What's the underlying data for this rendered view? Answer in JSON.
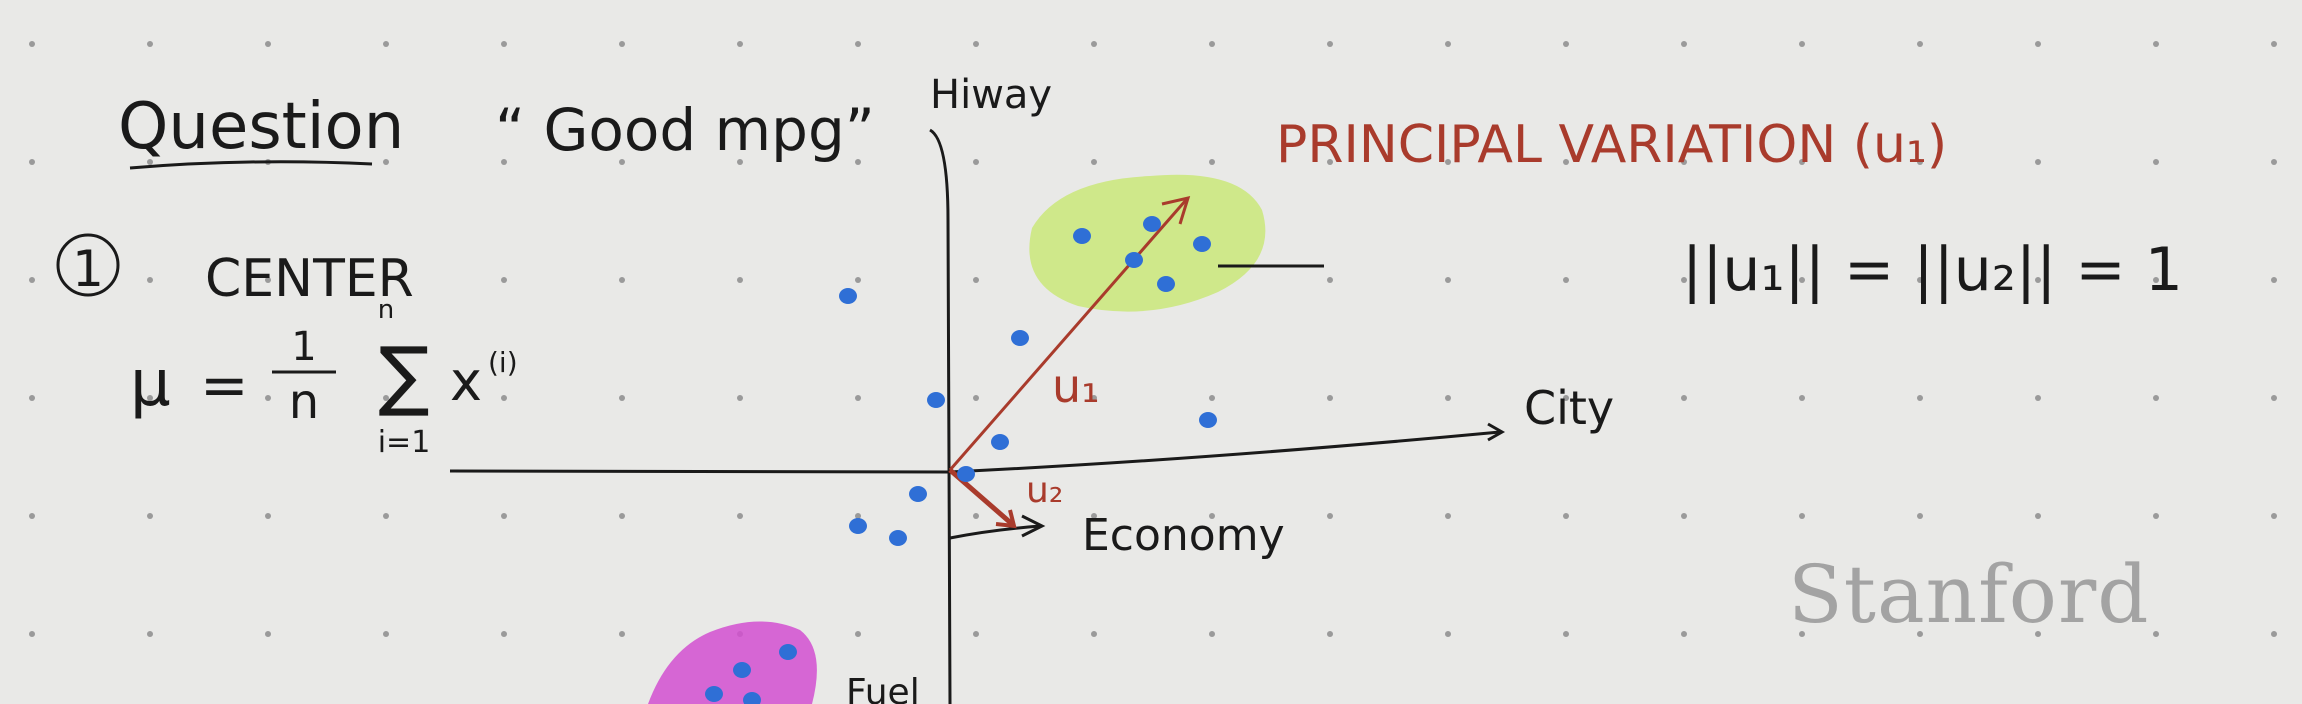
{
  "notes": {
    "question": "Question",
    "good_mpg": "“ Good mpg”",
    "step_number": "1",
    "center": "CENTER",
    "mu": "μ",
    "equals_one": "=",
    "one": "1",
    "n": "n",
    "sum": "∑",
    "sum_top": "n",
    "sum_bottom": "i=1",
    "x_i": "x",
    "x_sup": "(i)",
    "principal": "PRINCIPAL VARIATION (u₁)",
    "norm_eq": "||u₁|| = ||u₂|| = 1"
  },
  "axes": {
    "y_label": "Hiway",
    "x_label": "City",
    "third_label": "Economy",
    "bottom_label": "Fuel"
  },
  "vectors": {
    "u1": "u₁",
    "u2": "u₂"
  },
  "watermark": "Stanford",
  "colors": {
    "ink": "#1a1a1a",
    "red": "#a93b2c",
    "dot": "#2f6fd6",
    "green_blob": "#cfe88a",
    "magenta_blob": "#d24fd0"
  }
}
